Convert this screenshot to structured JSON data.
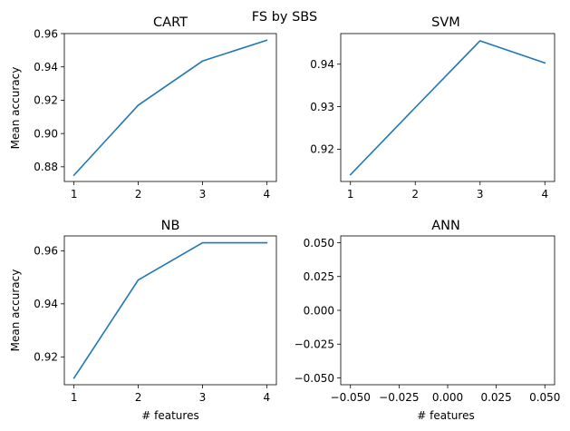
{
  "suptitle": "FS by SBS",
  "colors": {
    "series": "#1f77b4"
  },
  "chart_data": [
    {
      "type": "line",
      "title": "CART",
      "xlabel": "",
      "ylabel": "Mean accuracy",
      "x": [
        1,
        2,
        3,
        4
      ],
      "values": [
        0.875,
        0.917,
        0.9435,
        0.956
      ],
      "xlim": [
        0.85,
        4.15
      ],
      "ylim": [
        0.8712,
        0.96
      ],
      "xticks": [
        1,
        2,
        3,
        4
      ],
      "xtick_labels": [
        "1",
        "2",
        "3",
        "4"
      ],
      "yticks": [
        0.88,
        0.9,
        0.92,
        0.94,
        0.96
      ],
      "ytick_labels": [
        "0.88",
        "0.90",
        "0.92",
        "0.94",
        "0.96"
      ],
      "grid": false
    },
    {
      "type": "line",
      "title": "SVM",
      "xlabel": "",
      "ylabel": "",
      "x": [
        1,
        2,
        3,
        4
      ],
      "values": [
        0.914,
        0.9298,
        0.9455,
        0.9403
      ],
      "xlim": [
        0.85,
        4.15
      ],
      "ylim": [
        0.9124,
        0.9472
      ],
      "xticks": [
        1,
        2,
        3,
        4
      ],
      "xtick_labels": [
        "1",
        "2",
        "3",
        "4"
      ],
      "yticks": [
        0.92,
        0.93,
        0.94
      ],
      "ytick_labels": [
        "0.92",
        "0.93",
        "0.94"
      ],
      "grid": false
    },
    {
      "type": "line",
      "title": "NB",
      "xlabel": "# features",
      "ylabel": "Mean accuracy",
      "x": [
        1,
        2,
        3,
        4
      ],
      "values": [
        0.912,
        0.949,
        0.963,
        0.963
      ],
      "xlim": [
        0.85,
        4.15
      ],
      "ylim": [
        0.9095,
        0.9656
      ],
      "xticks": [
        1,
        2,
        3,
        4
      ],
      "xtick_labels": [
        "1",
        "2",
        "3",
        "4"
      ],
      "yticks": [
        0.92,
        0.94,
        0.96
      ],
      "ytick_labels": [
        "0.92",
        "0.94",
        "0.96"
      ],
      "grid": false
    },
    {
      "type": "line",
      "title": "ANN",
      "xlabel": "# features",
      "ylabel": "",
      "x": [],
      "values": [],
      "xlim": [
        -0.055,
        0.055
      ],
      "ylim": [
        -0.055,
        0.055
      ],
      "xticks": [
        -0.05,
        -0.025,
        0.0,
        0.025,
        0.05
      ],
      "xtick_labels": [
        "−0.050",
        "−0.025",
        "0.000",
        "0.025",
        "0.050"
      ],
      "yticks": [
        -0.05,
        -0.025,
        0.0,
        0.025,
        0.05
      ],
      "ytick_labels": [
        "−0.050",
        "−0.025",
        "0.000",
        "0.025",
        "0.050"
      ],
      "grid": false
    }
  ]
}
